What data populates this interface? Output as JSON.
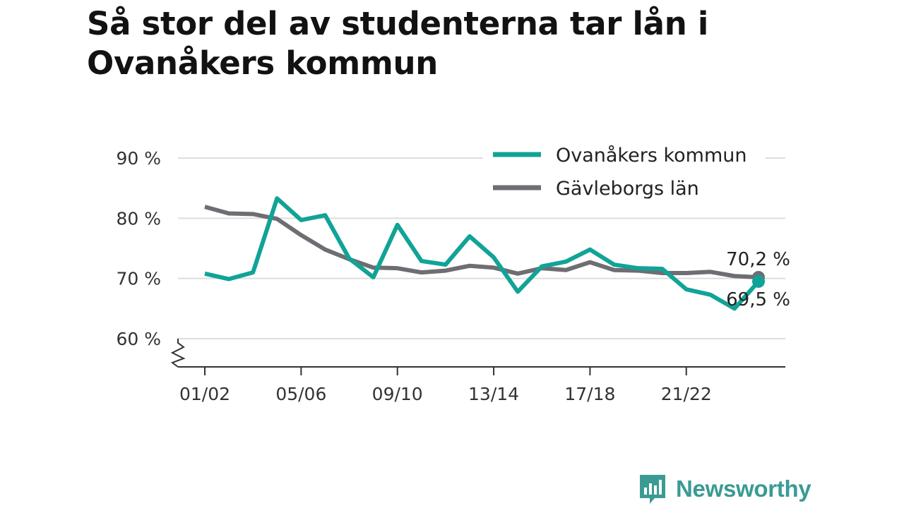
{
  "title": "Så stor del av studenterna tar lån i Ovanåkers kommun",
  "brand": {
    "name": "Newsworthy",
    "icon": "newsworthy-logo-icon"
  },
  "colors": {
    "primary": "#11a397",
    "secondary": "#6e6d73",
    "grid": "#dddddd",
    "axis": "#333333"
  },
  "chart_data": {
    "type": "line",
    "title": "Så stor del av studenterna tar lån i Ovanåkers kommun",
    "xlabel": "",
    "ylabel": "",
    "x": [
      "01/02",
      "02/03",
      "03/04",
      "04/05",
      "05/06",
      "06/07",
      "07/08",
      "08/09",
      "09/10",
      "10/11",
      "11/12",
      "12/13",
      "13/14",
      "14/15",
      "15/16",
      "16/17",
      "17/18",
      "18/19",
      "19/20",
      "20/21",
      "21/22",
      "22/23",
      "23/24",
      "24/25"
    ],
    "x_tick_labels": [
      "01/02",
      "05/06",
      "09/10",
      "13/14",
      "17/18",
      "21/22"
    ],
    "y_ticks": [
      60,
      70,
      80,
      90
    ],
    "y_tick_labels": [
      "60 %",
      "70 %",
      "80 %",
      "90 %"
    ],
    "ylim": [
      60,
      90
    ],
    "y_axis_broken": true,
    "grid": true,
    "legend_position": "top-right",
    "series": [
      {
        "name": "Ovanåkers kommun",
        "color": "#11a397",
        "values": [
          70.8,
          69.9,
          71.0,
          83.3,
          79.7,
          80.5,
          73.3,
          70.2,
          78.9,
          72.9,
          72.3,
          77.0,
          73.5,
          67.8,
          72.0,
          72.8,
          74.8,
          72.3,
          71.7,
          71.6,
          68.2,
          67.3,
          65.0,
          69.5
        ],
        "end_label": "69,5 %"
      },
      {
        "name": "Gävleborgs län",
        "color": "#6e6d73",
        "values": [
          81.9,
          80.8,
          80.7,
          79.9,
          77.2,
          74.8,
          73.2,
          71.8,
          71.7,
          71.0,
          71.3,
          72.1,
          71.8,
          70.8,
          71.7,
          71.4,
          72.7,
          71.4,
          71.3,
          70.9,
          70.9,
          71.1,
          70.4,
          70.2
        ],
        "end_label": "70,2 %"
      }
    ]
  }
}
